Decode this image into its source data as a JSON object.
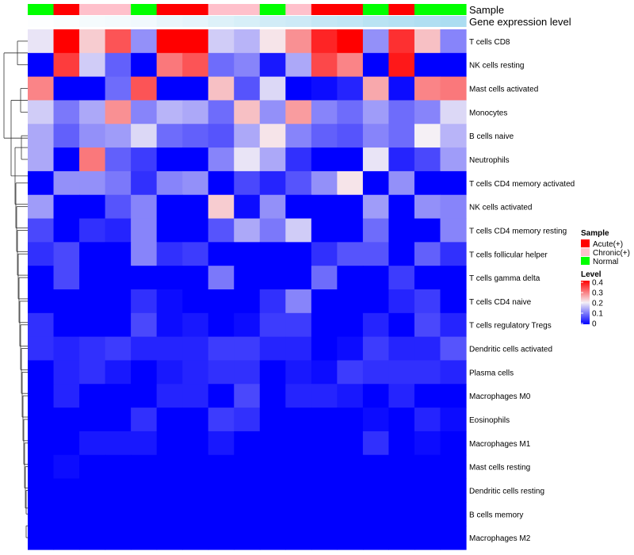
{
  "chart_data": {
    "type": "heatmap",
    "annotation_labels": {
      "sample": "Sample",
      "gene_expression": "Gene expression level"
    },
    "sample_groups": [
      "Normal",
      "Acute(+)",
      "Chronic(+)",
      "Chronic(+)",
      "Normal",
      "Acute(+)",
      "Acute(+)",
      "Chronic(+)",
      "Chronic(+)",
      "Normal",
      "Chronic(+)",
      "Acute(+)",
      "Acute(+)",
      "Normal",
      "Acute(+)",
      "Normal",
      "Normal"
    ],
    "gene_expression_levels": [
      0.02,
      0.05,
      0.08,
      0.1,
      0.12,
      0.18,
      0.22,
      0.28,
      0.33,
      0.38,
      0.42,
      0.48,
      0.52,
      0.58,
      0.62,
      0.66,
      0.7
    ],
    "rows": [
      "T cells CD8",
      "NK cells resting",
      "Mast cells activated",
      "Monocytes",
      "B cells naive",
      "Neutrophils",
      "T cells CD4 memory activated",
      "NK cells activated",
      "T cells CD4 memory resting",
      "T cells follicular helper",
      "T cells gamma delta",
      "T cells CD4 naive",
      "T cells regulatory  Tregs",
      "Dendritic cells activated",
      "Plasma cells",
      "Macrophages M0",
      "Eosinophils",
      "Macrophages M1",
      "Mast cells resting",
      "Dendritic cells resting",
      "B cells memory",
      "Macrophages M2"
    ],
    "values": [
      [
        0.19,
        0.4,
        0.23,
        0.33,
        0.12,
        0.4,
        0.4,
        0.17,
        0.15,
        0.21,
        0.28,
        0.37,
        0.4,
        0.12,
        0.36,
        0.24,
        0.11
      ],
      [
        0.0,
        0.35,
        0.17,
        0.08,
        0.0,
        0.3,
        0.33,
        0.09,
        0.11,
        0.02,
        0.14,
        0.34,
        0.29,
        0.0,
        0.38,
        0.0,
        0.0
      ],
      [
        0.29,
        0.0,
        0.0,
        0.09,
        0.33,
        0.0,
        0.0,
        0.24,
        0.07,
        0.18,
        0.0,
        0.01,
        0.03,
        0.26,
        0.01,
        0.29,
        0.3
      ],
      [
        0.17,
        0.1,
        0.14,
        0.28,
        0.11,
        0.15,
        0.14,
        0.09,
        0.24,
        0.12,
        0.27,
        0.11,
        0.09,
        0.13,
        0.09,
        0.11,
        0.18
      ],
      [
        0.14,
        0.08,
        0.12,
        0.13,
        0.18,
        0.09,
        0.08,
        0.07,
        0.14,
        0.21,
        0.11,
        0.08,
        0.07,
        0.11,
        0.09,
        0.2,
        0.15
      ],
      [
        0.14,
        0.0,
        0.3,
        0.08,
        0.05,
        0.0,
        0.0,
        0.11,
        0.19,
        0.14,
        0.04,
        0.0,
        0.0,
        0.19,
        0.03,
        0.06,
        0.13
      ],
      [
        0.0,
        0.12,
        0.12,
        0.1,
        0.04,
        0.11,
        0.12,
        0.0,
        0.06,
        0.03,
        0.07,
        0.12,
        0.21,
        0.0,
        0.12,
        0.0,
        0.0
      ],
      [
        0.13,
        0.0,
        0.0,
        0.07,
        0.11,
        0.0,
        0.0,
        0.23,
        0.01,
        0.12,
        0.0,
        0.0,
        0.0,
        0.13,
        0.0,
        0.12,
        0.11
      ],
      [
        0.06,
        0.0,
        0.04,
        0.03,
        0.11,
        0.0,
        0.0,
        0.07,
        0.14,
        0.1,
        0.17,
        0.0,
        0.0,
        0.09,
        0.0,
        0.0,
        0.11
      ],
      [
        0.04,
        0.06,
        0.0,
        0.0,
        0.11,
        0.04,
        0.05,
        0.0,
        0.0,
        0.0,
        0.0,
        0.04,
        0.07,
        0.07,
        0.0,
        0.08,
        0.04
      ],
      [
        0.0,
        0.06,
        0.0,
        0.0,
        0.0,
        0.0,
        0.0,
        0.1,
        0.0,
        0.0,
        0.0,
        0.09,
        0.0,
        0.0,
        0.05,
        0.0,
        0.0
      ],
      [
        0.0,
        0.0,
        0.0,
        0.0,
        0.04,
        0.01,
        0.0,
        0.0,
        0.0,
        0.04,
        0.11,
        0.0,
        0.0,
        0.0,
        0.03,
        0.05,
        0.0
      ],
      [
        0.04,
        0.0,
        0.0,
        0.0,
        0.06,
        0.01,
        0.02,
        0.0,
        0.01,
        0.05,
        0.05,
        0.0,
        0.0,
        0.03,
        0.0,
        0.06,
        0.03
      ],
      [
        0.04,
        0.03,
        0.04,
        0.05,
        0.03,
        0.03,
        0.03,
        0.05,
        0.05,
        0.03,
        0.03,
        0.0,
        0.01,
        0.05,
        0.03,
        0.03,
        0.07
      ],
      [
        0.0,
        0.03,
        0.04,
        0.02,
        0.0,
        0.02,
        0.03,
        0.04,
        0.04,
        0.0,
        0.02,
        0.01,
        0.05,
        0.04,
        0.04,
        0.04,
        0.03
      ],
      [
        0.0,
        0.03,
        0.0,
        0.0,
        0.0,
        0.03,
        0.03,
        0.0,
        0.06,
        0.0,
        0.03,
        0.03,
        0.02,
        0.0,
        0.03,
        0.0,
        0.0
      ],
      [
        0.0,
        0.0,
        0.0,
        0.0,
        0.04,
        0.0,
        0.0,
        0.05,
        0.04,
        0.0,
        0.0,
        0.0,
        0.0,
        0.01,
        0.0,
        0.03,
        0.01
      ],
      [
        0.0,
        0.0,
        0.02,
        0.02,
        0.02,
        0.0,
        0.0,
        0.02,
        0.0,
        0.0,
        0.0,
        0.0,
        0.0,
        0.04,
        0.0,
        0.01,
        0.0
      ],
      [
        0.0,
        0.01,
        0.0,
        0.0,
        0.0,
        0.0,
        0.0,
        0.0,
        0.0,
        0.0,
        0.0,
        0.0,
        0.0,
        0.0,
        0.0,
        0.0,
        0.0
      ],
      [
        0.0,
        0.0,
        0.0,
        0.0,
        0.0,
        0.0,
        0.0,
        0.0,
        0.0,
        0.0,
        0.0,
        0.0,
        0.0,
        0.0,
        0.0,
        0.0,
        0.0
      ],
      [
        0.0,
        0.0,
        0.0,
        0.0,
        0.0,
        0.0,
        0.0,
        0.0,
        0.0,
        0.0,
        0.0,
        0.0,
        0.0,
        0.0,
        0.0,
        0.0,
        0.0
      ],
      [
        0.0,
        0.0,
        0.0,
        0.0,
        0.0,
        0.0,
        0.0,
        0.0,
        0.0,
        0.0,
        0.0,
        0.0,
        0.0,
        0.0,
        0.0,
        0.0,
        0.0
      ]
    ],
    "color_scale": {
      "min": 0,
      "max": 0.4,
      "colors": [
        "#0000ff",
        "#f5f0f5",
        "#ff0000"
      ],
      "ticks": [
        "0.4",
        "0.3",
        "0.2",
        "0.1",
        "0"
      ]
    },
    "legend": {
      "sample_title": "Sample",
      "sample_entries": [
        {
          "label": "Acute(+)",
          "color": "#ff0000"
        },
        {
          "label": "Chronic(+)",
          "color": "#ffc0cb"
        },
        {
          "label": "Normal",
          "color": "#00ff00"
        }
      ],
      "level_title": "Level",
      "placement": "right"
    },
    "group_colors": {
      "Normal": "#00ff00",
      "Acute(+)": "#ff0000",
      "Chronic(+)": "#ffc0cb"
    },
    "gene_expression_colors": [
      "#ffffff",
      "#87ceeb"
    ]
  }
}
